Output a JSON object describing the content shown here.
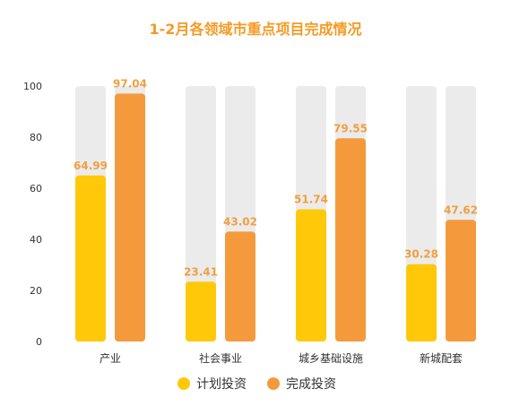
{
  "chart_data": {
    "type": "bar",
    "title": "1-2月各领域市重点项目完成情况",
    "xlabel": "",
    "ylabel": "",
    "ylim": [
      0,
      100
    ],
    "yticks": [
      0,
      20,
      40,
      60,
      80,
      100
    ],
    "categories": [
      "产业",
      "社会事业",
      "城乡基础设施",
      "新城配套"
    ],
    "series": [
      {
        "name": "计划投资",
        "values": [
          64.99,
          23.41,
          51.74,
          30.28
        ]
      },
      {
        "name": "完成投资",
        "values": [
          97.04,
          43.02,
          79.55,
          47.62
        ]
      }
    ],
    "grid": false,
    "legend_position": "bottom",
    "colors": {
      "title": "#F59A23",
      "label": "#F0A040",
      "series": [
        "#FFC90A",
        "#F59A3C"
      ],
      "track": "#EBEBEB",
      "axis_text": "#333333"
    }
  }
}
